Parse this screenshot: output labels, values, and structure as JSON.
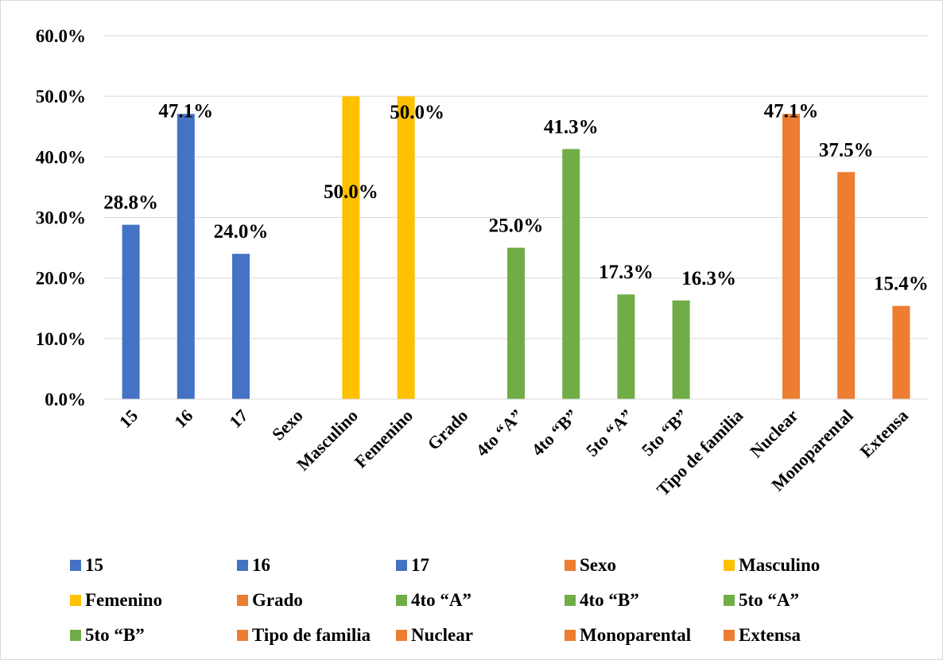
{
  "chart_data": {
    "type": "bar",
    "title": "",
    "xlabel": "",
    "ylabel": "",
    "ylim": [
      0,
      60
    ],
    "y_ticks": [
      "0.0%",
      "10.0%",
      "20.0%",
      "30.0%",
      "40.0%",
      "50.0%",
      "60.0%"
    ],
    "grid": true,
    "legend_position": "bottom",
    "categories": [
      "15",
      "16",
      "17",
      "Sexo",
      "Masculino",
      "Femenino",
      "Grado",
      "4to “A”",
      "4to “B”",
      "5to “A”",
      "5to “B”",
      "Tipo de familia",
      "Nuclear",
      "Monoparental",
      "Extensa"
    ],
    "values": [
      28.8,
      47.1,
      24.0,
      null,
      50.0,
      50.0,
      null,
      25.0,
      41.3,
      17.3,
      16.3,
      null,
      47.1,
      37.5,
      15.4
    ],
    "value_labels": [
      "28.8%",
      "47.1%",
      "24.0%",
      "",
      "50.0%",
      "50.0%",
      "",
      "25.0%",
      "41.3%",
      "17.3%",
      "16.3%",
      "",
      "47.1%",
      "37.5%",
      "15.4%"
    ],
    "colors": [
      "#4472c4",
      "#4472c4",
      "#4472c4",
      "#ed7d31",
      "#ffc000",
      "#ffc000",
      "#ed7d31",
      "#70ad47",
      "#70ad47",
      "#70ad47",
      "#70ad47",
      "#ed7d31",
      "#ed7d31",
      "#ed7d31",
      "#ed7d31"
    ]
  },
  "legend": {
    "items": [
      {
        "label": "15",
        "color": "#4472c4"
      },
      {
        "label": "16",
        "color": "#4472c4"
      },
      {
        "label": "17",
        "color": "#4472c4"
      },
      {
        "label": "Sexo",
        "color": "#ed7d31"
      },
      {
        "label": "Masculino",
        "color": "#ffc000"
      },
      {
        "label": "Femenino",
        "color": "#ffc000"
      },
      {
        "label": "Grado",
        "color": "#ed7d31"
      },
      {
        "label": "4to “A”",
        "color": "#70ad47"
      },
      {
        "label": "4to “B”",
        "color": "#70ad47"
      },
      {
        "label": "5to “A”",
        "color": "#70ad47"
      },
      {
        "label": "5to “B”",
        "color": "#70ad47"
      },
      {
        "label": "Tipo de familia",
        "color": "#ed7d31"
      },
      {
        "label": "Nuclear",
        "color": "#ed7d31"
      },
      {
        "label": "Monoparental",
        "color": "#ed7d31"
      },
      {
        "label": "Extensa",
        "color": "#ed7d31"
      }
    ]
  }
}
